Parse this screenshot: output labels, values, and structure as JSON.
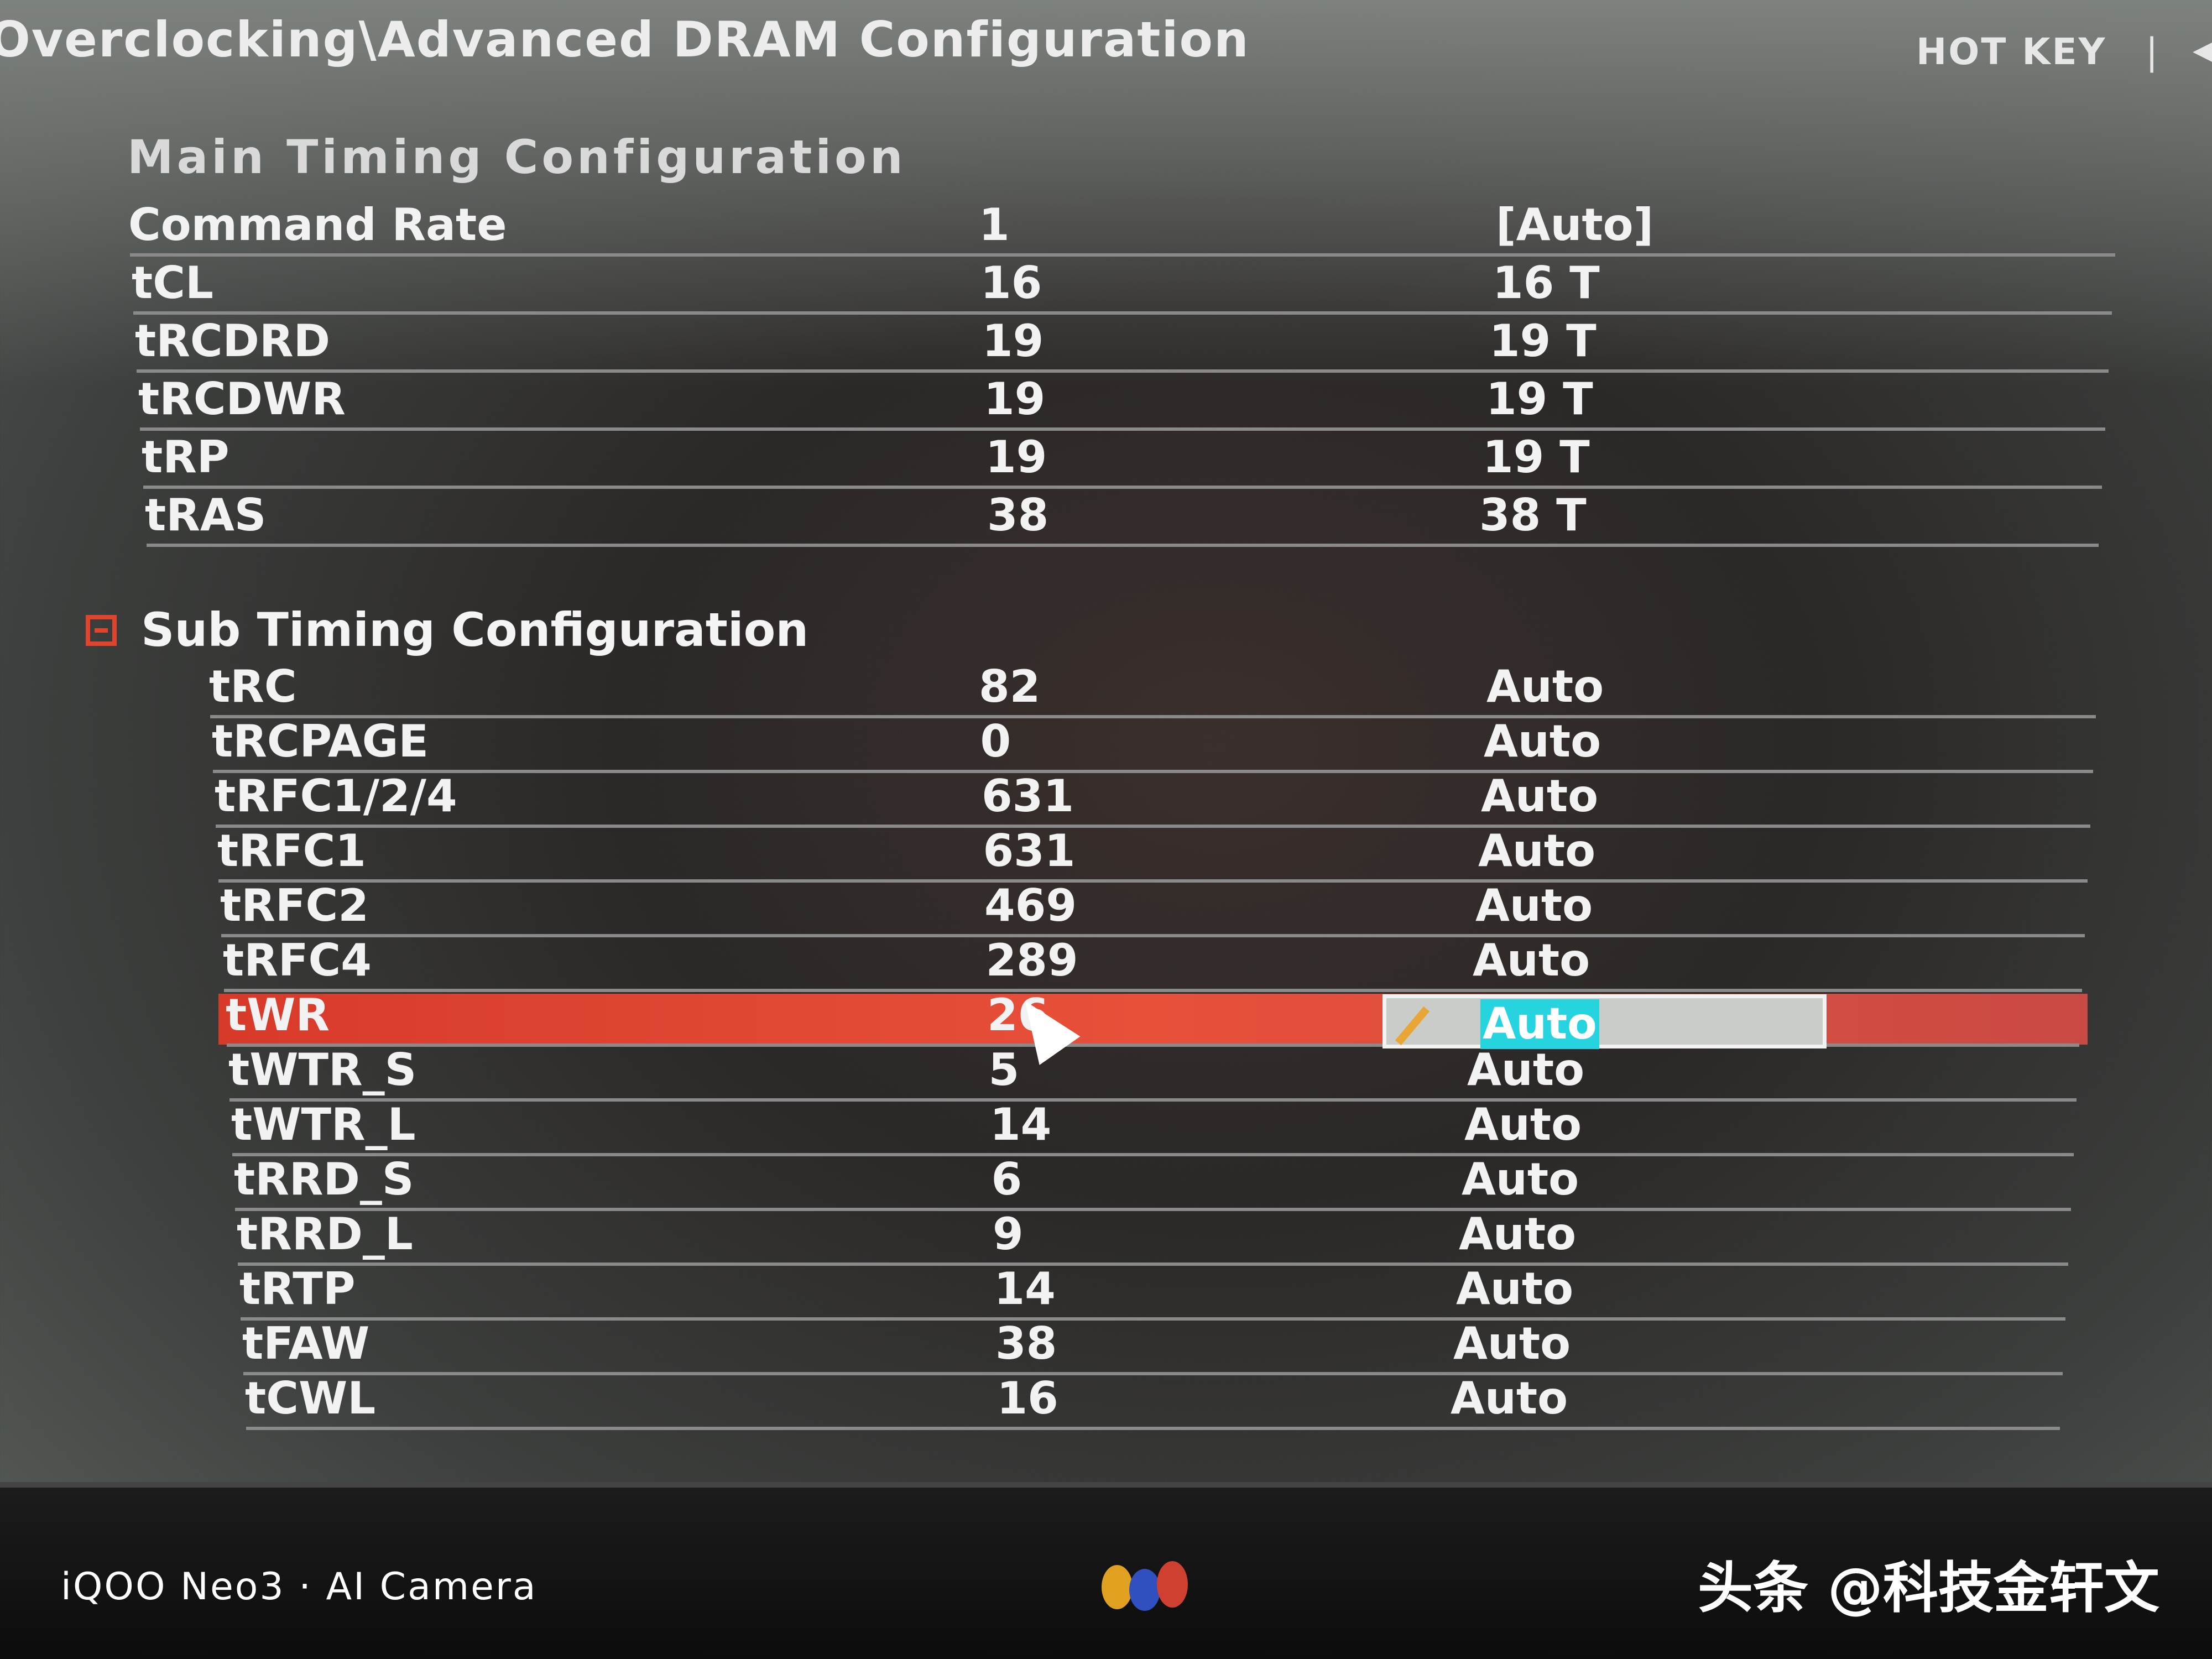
{
  "header": {
    "breadcrumb": "Overclocking\\Advanced DRAM Configuration",
    "hotkey_label": "HOT KEY",
    "separator": "|",
    "back_icon": "arrow-left-icon"
  },
  "main_timing": {
    "heading": "Main  Timing  Configuration",
    "rows": [
      {
        "label": "Command Rate",
        "value": "1",
        "setting": "[Auto]"
      },
      {
        "label": "tCL",
        "value": "16",
        "setting": "16 T"
      },
      {
        "label": "tRCDRD",
        "value": "19",
        "setting": "19 T"
      },
      {
        "label": "tRCDWR",
        "value": "19",
        "setting": "19 T"
      },
      {
        "label": "tRP",
        "value": "19",
        "setting": "19 T"
      },
      {
        "label": "tRAS",
        "value": "38",
        "setting": "38 T"
      }
    ]
  },
  "sub_timing": {
    "heading": "Sub Timing Configuration",
    "collapse_icon": "collapse-minus-icon",
    "rows": [
      {
        "label": "tRC",
        "value": "82",
        "setting": "Auto"
      },
      {
        "label": "tRCPAGE",
        "value": "0",
        "setting": "Auto"
      },
      {
        "label": "tRFC1/2/4",
        "value": "631",
        "setting": "Auto"
      },
      {
        "label": "tRFC1",
        "value": "631",
        "setting": "Auto"
      },
      {
        "label": "tRFC2",
        "value": "469",
        "setting": "Auto"
      },
      {
        "label": "tRFC4",
        "value": "289",
        "setting": "Auto"
      },
      {
        "label": "tWR",
        "value": "26",
        "setting": "Auto",
        "selected": true
      },
      {
        "label": "tWTR_S",
        "value": "5",
        "setting": "Auto"
      },
      {
        "label": "tWTR_L",
        "value": "14",
        "setting": "Auto"
      },
      {
        "label": "tRRD_S",
        "value": "6",
        "setting": "Auto"
      },
      {
        "label": "tRRD_L",
        "value": "9",
        "setting": "Auto"
      },
      {
        "label": "tRTP",
        "value": "14",
        "setting": "Auto"
      },
      {
        "label": "tFAW",
        "value": "38",
        "setting": "Auto"
      },
      {
        "label": "tCWL",
        "value": "16",
        "setting": "Auto"
      }
    ]
  },
  "colors": {
    "highlight": "#e04a36",
    "edit_selection": "#25d4de"
  },
  "watermarks": {
    "camera": "iQOO Neo3 · AI Camera",
    "toutiao": "头条 @科技金轩文"
  }
}
